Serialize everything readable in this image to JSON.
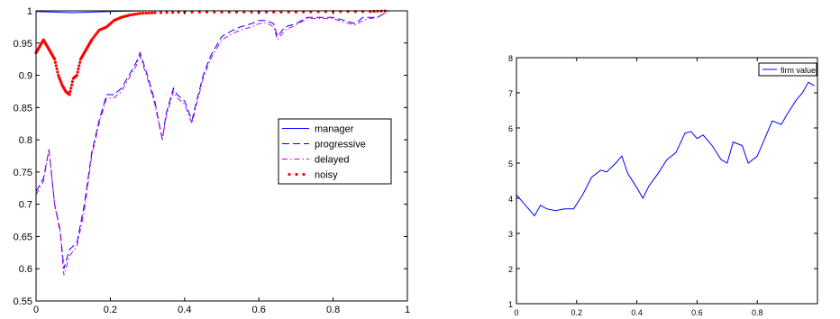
{
  "chart_data": [
    {
      "type": "line",
      "title": "",
      "xlabel": "",
      "ylabel": "",
      "xlim": [
        0,
        1
      ],
      "ylim": [
        0.55,
        1
      ],
      "xticks": [
        "0",
        "0.2",
        "0.4",
        "0.6",
        "0.8",
        "1"
      ],
      "yticks": [
        "0.55",
        "0.6",
        "0.65",
        "0.7",
        "0.75",
        "0.8",
        "0.85",
        "0.9",
        "0.95",
        "1"
      ],
      "grid": false,
      "legend_position": "center-right",
      "series": [
        {
          "name": "manager",
          "style": "solid",
          "color": "#0000ff",
          "x": [
            0,
            0.05,
            0.1,
            0.15,
            0.2,
            0.25,
            0.3,
            0.95
          ],
          "y": [
            0.999,
            0.998,
            0.997,
            0.998,
            0.999,
            0.9995,
            1.0,
            1.0
          ]
        },
        {
          "name": "progressive",
          "style": "dashed",
          "color": "#0000ff",
          "x": [
            0,
            0.02,
            0.035,
            0.05,
            0.065,
            0.075,
            0.09,
            0.11,
            0.13,
            0.15,
            0.17,
            0.19,
            0.21,
            0.23,
            0.25,
            0.27,
            0.28,
            0.3,
            0.32,
            0.34,
            0.35,
            0.37,
            0.38,
            0.4,
            0.42,
            0.43,
            0.45,
            0.47,
            0.5,
            0.53,
            0.55,
            0.58,
            0.6,
            0.62,
            0.64,
            0.65,
            0.67,
            0.7,
            0.73,
            0.76,
            0.8,
            0.83,
            0.86,
            0.88,
            0.9,
            0.92,
            0.95
          ],
          "y": [
            0.72,
            0.74,
            0.785,
            0.7,
            0.66,
            0.6,
            0.63,
            0.64,
            0.7,
            0.78,
            0.83,
            0.87,
            0.87,
            0.88,
            0.9,
            0.92,
            0.935,
            0.9,
            0.86,
            0.8,
            0.84,
            0.88,
            0.87,
            0.86,
            0.83,
            0.855,
            0.9,
            0.93,
            0.96,
            0.97,
            0.975,
            0.98,
            0.985,
            0.985,
            0.98,
            0.96,
            0.975,
            0.98,
            0.99,
            0.99,
            0.99,
            0.985,
            0.98,
            0.99,
            0.99,
            0.99,
            1.0
          ]
        },
        {
          "name": "delayed",
          "style": "dashdot",
          "color": "#cc00cc",
          "x": [
            0,
            0.02,
            0.035,
            0.05,
            0.065,
            0.075,
            0.09,
            0.11,
            0.13,
            0.15,
            0.17,
            0.19,
            0.21,
            0.23,
            0.25,
            0.27,
            0.28,
            0.3,
            0.32,
            0.34,
            0.35,
            0.37,
            0.38,
            0.4,
            0.42,
            0.43,
            0.45,
            0.47,
            0.5,
            0.53,
            0.55,
            0.58,
            0.6,
            0.62,
            0.64,
            0.65,
            0.67,
            0.7,
            0.73,
            0.76,
            0.8,
            0.83,
            0.86,
            0.88,
            0.9,
            0.92,
            0.95
          ],
          "y": [
            0.715,
            0.735,
            0.785,
            0.7,
            0.655,
            0.59,
            0.62,
            0.635,
            0.69,
            0.775,
            0.825,
            0.865,
            0.865,
            0.875,
            0.895,
            0.915,
            0.93,
            0.895,
            0.855,
            0.8,
            0.835,
            0.875,
            0.865,
            0.855,
            0.825,
            0.85,
            0.895,
            0.925,
            0.955,
            0.965,
            0.97,
            0.975,
            0.98,
            0.982,
            0.975,
            0.955,
            0.97,
            0.978,
            0.988,
            0.988,
            0.988,
            0.982,
            0.978,
            0.985,
            0.988,
            0.99,
            1.0
          ]
        },
        {
          "name": "noisy",
          "style": "dotted",
          "color": "#ff0000",
          "x": [
            0,
            0.01,
            0.02,
            0.03,
            0.04,
            0.05,
            0.06,
            0.07,
            0.08,
            0.09,
            0.1,
            0.11,
            0.12,
            0.13,
            0.14,
            0.15,
            0.17,
            0.19,
            0.21,
            0.23,
            0.25,
            0.28,
            0.32,
            0.4,
            0.5,
            0.6,
            0.7,
            0.8,
            0.9,
            0.95
          ],
          "y": [
            0.935,
            0.945,
            0.955,
            0.945,
            0.935,
            0.925,
            0.9,
            0.885,
            0.875,
            0.87,
            0.895,
            0.9,
            0.925,
            0.935,
            0.945,
            0.955,
            0.97,
            0.975,
            0.985,
            0.99,
            0.993,
            0.996,
            0.997,
            0.998,
            0.998,
            0.998,
            0.998,
            0.999,
            0.999,
            1.0
          ]
        }
      ]
    },
    {
      "type": "line",
      "title": "",
      "xlabel": "",
      "ylabel": "",
      "xlim": [
        0,
        1
      ],
      "ylim": [
        1,
        8
      ],
      "xticks": [
        "0",
        "0.2",
        "0.4",
        "0.6",
        "0.8"
      ],
      "yticks": [
        "1",
        "2",
        "3",
        "4",
        "5",
        "6",
        "7",
        "8"
      ],
      "grid": false,
      "legend_position": "top-right",
      "series": [
        {
          "name": "firm value",
          "style": "solid",
          "color": "#0000ff",
          "x": [
            0,
            0.02,
            0.04,
            0.06,
            0.08,
            0.1,
            0.13,
            0.16,
            0.19,
            0.22,
            0.25,
            0.28,
            0.3,
            0.33,
            0.35,
            0.37,
            0.4,
            0.42,
            0.44,
            0.47,
            0.5,
            0.53,
            0.56,
            0.58,
            0.6,
            0.62,
            0.65,
            0.68,
            0.7,
            0.72,
            0.75,
            0.77,
            0.8,
            0.82,
            0.85,
            0.88,
            0.9,
            0.93,
            0.95,
            0.97,
            0.99
          ],
          "y": [
            4.1,
            3.9,
            3.7,
            3.5,
            3.8,
            3.7,
            3.65,
            3.7,
            3.7,
            4.1,
            4.6,
            4.8,
            4.75,
            5.0,
            5.2,
            4.7,
            4.3,
            4.0,
            4.35,
            4.7,
            5.1,
            5.3,
            5.85,
            5.9,
            5.7,
            5.8,
            5.5,
            5.1,
            5.0,
            5.6,
            5.5,
            5.0,
            5.2,
            5.6,
            6.2,
            6.1,
            6.4,
            6.8,
            7.0,
            7.3,
            7.2
          ]
        },
        {
          "name": "",
          "style": "solid",
          "color": "#cc0000",
          "x": [
            0,
            0.99
          ],
          "y": [
            1.0,
            1.0
          ]
        }
      ]
    }
  ]
}
